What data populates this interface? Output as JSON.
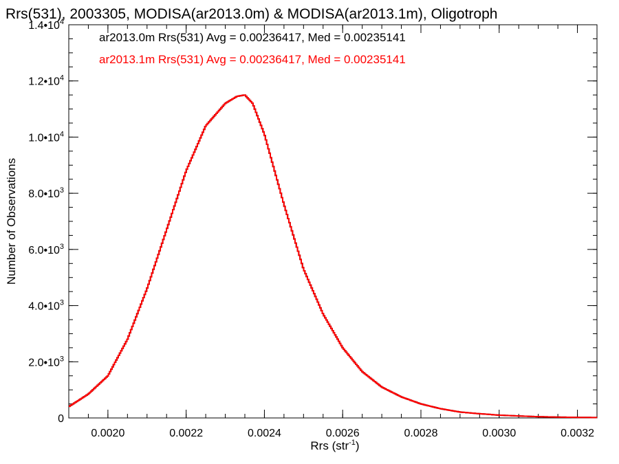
{
  "chart_data": {
    "type": "line",
    "title": "Rrs(531), 2003305, MODISA(ar2013.0m) & MODISA(ar2013.1m), Oligotroph",
    "xlabel": "Rrs (str",
    "xlabel_sup": "-1",
    "xlabel_close": ")",
    "ylabel": "Number of Observations",
    "xlim": [
      0.0019,
      0.00325
    ],
    "ylim": [
      0,
      14000
    ],
    "x_ticks": [
      {
        "value": 0.002,
        "label": "0.0020"
      },
      {
        "value": 0.0022,
        "label": "0.0022"
      },
      {
        "value": 0.0024,
        "label": "0.0024"
      },
      {
        "value": 0.0026,
        "label": "0.0026"
      },
      {
        "value": 0.0028,
        "label": "0.0028"
      },
      {
        "value": 0.003,
        "label": "0.0030"
      },
      {
        "value": 0.0032,
        "label": "0.0032"
      }
    ],
    "y_ticks": [
      {
        "value": 0,
        "base": "0",
        "exp": ""
      },
      {
        "value": 2000,
        "base": "2.0•10",
        "exp": "3"
      },
      {
        "value": 4000,
        "base": "4.0•10",
        "exp": "3"
      },
      {
        "value": 6000,
        "base": "6.0•10",
        "exp": "3"
      },
      {
        "value": 8000,
        "base": "8.0•10",
        "exp": "3"
      },
      {
        "value": 10000,
        "base": "1.0•10",
        "exp": "4"
      },
      {
        "value": 12000,
        "base": "1.2•10",
        "exp": "4"
      },
      {
        "value": 14000,
        "base": "1.4•10",
        "exp": "4"
      }
    ],
    "legend": {
      "placement": "top-left"
    },
    "series": [
      {
        "name": "ar2013.0m Rrs(531) Avg = 0.00236417, Med = 0.00235141",
        "color": "#000000",
        "x": [
          0.0019,
          0.00195,
          0.002,
          0.00205,
          0.0021,
          0.00215,
          0.0022,
          0.00225,
          0.0023,
          0.00233,
          0.00235,
          0.00237,
          0.0024,
          0.00245,
          0.0025,
          0.00255,
          0.0026,
          0.00265,
          0.0027,
          0.00275,
          0.0028,
          0.00285,
          0.0029,
          0.00295,
          0.003,
          0.00305,
          0.0031,
          0.00315,
          0.0032,
          0.00325
        ],
        "values": [
          400,
          850,
          1500,
          2800,
          4600,
          6700,
          8800,
          10400,
          11200,
          11450,
          11500,
          11200,
          10100,
          7600,
          5300,
          3700,
          2500,
          1650,
          1100,
          750,
          500,
          330,
          210,
          150,
          100,
          70,
          45,
          30,
          20,
          15
        ]
      },
      {
        "name": "ar2013.1m Rrs(531) Avg = 0.00236417, Med = 0.00235141",
        "color": "#ff0000",
        "x": [
          0.0019,
          0.00195,
          0.002,
          0.00205,
          0.0021,
          0.00215,
          0.0022,
          0.00225,
          0.0023,
          0.00233,
          0.00235,
          0.00237,
          0.0024,
          0.00245,
          0.0025,
          0.00255,
          0.0026,
          0.00265,
          0.0027,
          0.00275,
          0.0028,
          0.00285,
          0.0029,
          0.00295,
          0.003,
          0.00305,
          0.0031,
          0.00315,
          0.0032,
          0.00325
        ],
        "values": [
          400,
          850,
          1500,
          2800,
          4600,
          6700,
          8800,
          10400,
          11200,
          11450,
          11500,
          11200,
          10100,
          7600,
          5300,
          3700,
          2500,
          1650,
          1100,
          750,
          500,
          330,
          210,
          150,
          100,
          70,
          45,
          30,
          20,
          15
        ]
      }
    ]
  }
}
